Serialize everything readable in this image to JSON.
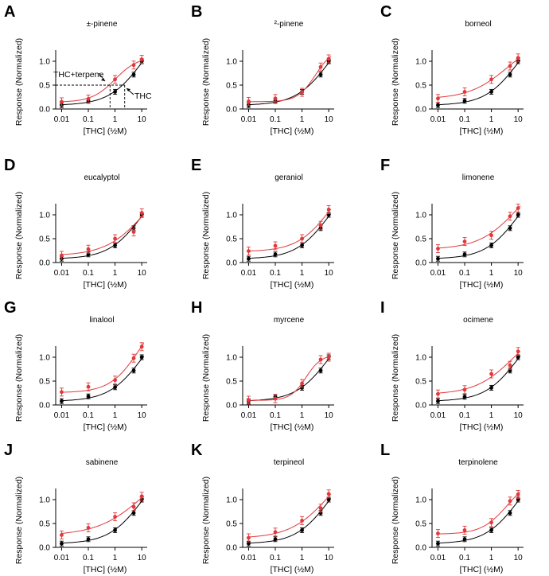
{
  "figure": {
    "colors": {
      "thc": "#000000",
      "combo": "#e0393b"
    },
    "ylabel": "Response (Normalized)",
    "xlabel": "[THC] (½M)",
    "xticks": [
      "0.01",
      "0.1",
      "1",
      "10"
    ],
    "yticks": [
      "0.0",
      "0.5",
      "1.0"
    ]
  },
  "chart_data": [
    {
      "letter": "A",
      "title": "±-pinene",
      "type": "scatter",
      "xscale": "log",
      "xlabel": "[THC] (½M)",
      "ylabel": "Response (Normalized)",
      "xlim": [
        0.006,
        16
      ],
      "ylim": [
        0,
        1.2
      ],
      "annotations": [
        "THC+terpene",
        "THC"
      ],
      "series": [
        {
          "name": "THC",
          "color": "#000000",
          "x": [
            0.01,
            0.1,
            1,
            5,
            10
          ],
          "y": [
            0.08,
            0.17,
            0.36,
            0.72,
            1.0
          ]
        },
        {
          "name": "THC+terpene",
          "color": "#e0393b",
          "x": [
            0.01,
            0.1,
            1,
            5,
            10
          ],
          "y": [
            0.15,
            0.21,
            0.62,
            0.92,
            1.04
          ]
        }
      ]
    },
    {
      "letter": "B",
      "title": "²-pinene",
      "type": "scatter",
      "xscale": "log",
      "xlabel": "[THC] (½M)",
      "ylabel": "Response (Normalized)",
      "xlim": [
        0.006,
        16
      ],
      "ylim": [
        0,
        1.2
      ],
      "series": [
        {
          "color": "#000000",
          "x": [
            0.01,
            0.1,
            1,
            5,
            10
          ],
          "y": [
            0.08,
            0.17,
            0.36,
            0.72,
            1.0
          ]
        },
        {
          "color": "#e0393b",
          "x": [
            0.01,
            0.1,
            1,
            5,
            10
          ],
          "y": [
            0.16,
            0.22,
            0.35,
            0.88,
            1.05
          ]
        }
      ]
    },
    {
      "letter": "C",
      "title": "borneol",
      "type": "scatter",
      "xscale": "log",
      "xlabel": "[THC] (½M)",
      "ylabel": "Response (Normalized)",
      "xlim": [
        0.006,
        16
      ],
      "ylim": [
        0,
        1.2
      ],
      "series": [
        {
          "color": "#000000",
          "x": [
            0.01,
            0.1,
            1,
            5,
            10
          ],
          "y": [
            0.08,
            0.17,
            0.36,
            0.72,
            1.0
          ]
        },
        {
          "color": "#e0393b",
          "x": [
            0.01,
            0.1,
            1,
            5,
            10
          ],
          "y": [
            0.22,
            0.36,
            0.62,
            0.9,
            1.07
          ]
        }
      ]
    },
    {
      "letter": "D",
      "title": "eucalyptol",
      "type": "scatter",
      "xscale": "log",
      "xlabel": "[THC] (½M)",
      "ylabel": "Response (Normalized)",
      "xlim": [
        0.006,
        16
      ],
      "ylim": [
        0,
        1.2
      ],
      "series": [
        {
          "color": "#000000",
          "x": [
            0.01,
            0.1,
            1,
            5,
            10
          ],
          "y": [
            0.08,
            0.17,
            0.36,
            0.72,
            1.0
          ]
        },
        {
          "color": "#e0393b",
          "x": [
            0.01,
            0.1,
            1,
            5,
            10
          ],
          "y": [
            0.15,
            0.28,
            0.5,
            0.64,
            1.04
          ]
        }
      ]
    },
    {
      "letter": "E",
      "title": "geraniol",
      "type": "scatter",
      "xscale": "log",
      "xlabel": "[THC] (½M)",
      "ylabel": "Response (Normalized)",
      "xlim": [
        0.006,
        16
      ],
      "ylim": [
        0,
        1.2
      ],
      "series": [
        {
          "color": "#000000",
          "x": [
            0.01,
            0.1,
            1,
            5,
            10
          ],
          "y": [
            0.08,
            0.17,
            0.36,
            0.72,
            1.0
          ]
        },
        {
          "color": "#e0393b",
          "x": [
            0.01,
            0.1,
            1,
            5,
            10
          ],
          "y": [
            0.24,
            0.35,
            0.5,
            0.78,
            1.11
          ]
        }
      ]
    },
    {
      "letter": "F",
      "title": "limonene",
      "type": "scatter",
      "xscale": "log",
      "xlabel": "[THC] (½M)",
      "ylabel": "Response (Normalized)",
      "xlim": [
        0.006,
        16
      ],
      "ylim": [
        0,
        1.2
      ],
      "series": [
        {
          "color": "#000000",
          "x": [
            0.01,
            0.1,
            1,
            5,
            10
          ],
          "y": [
            0.08,
            0.17,
            0.36,
            0.72,
            1.0
          ]
        },
        {
          "color": "#e0393b",
          "x": [
            0.01,
            0.1,
            1,
            5,
            10
          ],
          "y": [
            0.29,
            0.44,
            0.57,
            0.97,
            1.14
          ]
        }
      ]
    },
    {
      "letter": "G",
      "title": "linalool",
      "type": "scatter",
      "xscale": "log",
      "xlabel": "[THC] (½M)",
      "ylabel": "Response (Normalized)",
      "xlim": [
        0.006,
        16
      ],
      "ylim": [
        0,
        1.2
      ],
      "series": [
        {
          "color": "#000000",
          "x": [
            0.01,
            0.1,
            1,
            5,
            10
          ],
          "y": [
            0.08,
            0.18,
            0.37,
            0.72,
            1.0
          ]
        },
        {
          "color": "#e0393b",
          "x": [
            0.01,
            0.1,
            1,
            5,
            10
          ],
          "y": [
            0.27,
            0.38,
            0.52,
            0.98,
            1.22
          ]
        }
      ]
    },
    {
      "letter": "H",
      "title": "myrcene",
      "type": "scatter",
      "xscale": "log",
      "xlabel": "[THC] (½M)",
      "ylabel": "Response (Normalized)",
      "xlim": [
        0.006,
        16
      ],
      "ylim": [
        0,
        1.2
      ],
      "series": [
        {
          "color": "#000000",
          "x": [
            0.01,
            0.1,
            1,
            5,
            10
          ],
          "y": [
            0.08,
            0.17,
            0.36,
            0.72,
            1.0
          ]
        },
        {
          "color": "#e0393b",
          "x": [
            0.01,
            0.1,
            1,
            5,
            10
          ],
          "y": [
            0.1,
            0.13,
            0.45,
            0.95,
            1.0
          ]
        }
      ]
    },
    {
      "letter": "I",
      "title": "ocimene",
      "type": "scatter",
      "xscale": "log",
      "xlabel": "[THC] (½M)",
      "ylabel": "Response (Normalized)",
      "xlim": [
        0.006,
        16
      ],
      "ylim": [
        0,
        1.2
      ],
      "series": [
        {
          "color": "#000000",
          "x": [
            0.01,
            0.1,
            1,
            5,
            10
          ],
          "y": [
            0.08,
            0.17,
            0.36,
            0.72,
            1.0
          ]
        },
        {
          "color": "#e0393b",
          "x": [
            0.01,
            0.1,
            1,
            5,
            10
          ],
          "y": [
            0.23,
            0.32,
            0.65,
            0.83,
            1.12
          ]
        }
      ]
    },
    {
      "letter": "J",
      "title": "sabinene",
      "type": "scatter",
      "xscale": "log",
      "xlabel": "[THC] (½M)",
      "ylabel": "Response (Normalized)",
      "xlim": [
        0.006,
        16
      ],
      "ylim": [
        0,
        1.2
      ],
      "series": [
        {
          "color": "#000000",
          "x": [
            0.01,
            0.1,
            1,
            5,
            10
          ],
          "y": [
            0.08,
            0.17,
            0.36,
            0.72,
            1.0
          ]
        },
        {
          "color": "#e0393b",
          "x": [
            0.01,
            0.1,
            1,
            5,
            10
          ],
          "y": [
            0.26,
            0.41,
            0.64,
            0.85,
            1.07
          ]
        }
      ]
    },
    {
      "letter": "K",
      "title": "terpineol",
      "type": "scatter",
      "xscale": "log",
      "xlabel": "[THC] (½M)",
      "ylabel": "Response (Normalized)",
      "xlim": [
        0.006,
        16
      ],
      "ylim": [
        0,
        1.2
      ],
      "series": [
        {
          "color": "#000000",
          "x": [
            0.01,
            0.1,
            1,
            5,
            10
          ],
          "y": [
            0.08,
            0.17,
            0.36,
            0.72,
            1.0
          ]
        },
        {
          "color": "#e0393b",
          "x": [
            0.01,
            0.1,
            1,
            5,
            10
          ],
          "y": [
            0.2,
            0.32,
            0.56,
            0.82,
            1.12
          ]
        }
      ]
    },
    {
      "letter": "L",
      "title": "terpinolene",
      "type": "scatter",
      "xscale": "log",
      "xlabel": "[THC] (½M)",
      "ylabel": "Response (Normalized)",
      "xlim": [
        0.006,
        16
      ],
      "ylim": [
        0,
        1.2
      ],
      "series": [
        {
          "color": "#000000",
          "x": [
            0.01,
            0.1,
            1,
            5,
            10
          ],
          "y": [
            0.08,
            0.17,
            0.36,
            0.72,
            1.0
          ]
        },
        {
          "color": "#e0393b",
          "x": [
            0.01,
            0.1,
            1,
            5,
            10
          ],
          "y": [
            0.29,
            0.36,
            0.52,
            0.97,
            1.11
          ]
        }
      ]
    }
  ]
}
